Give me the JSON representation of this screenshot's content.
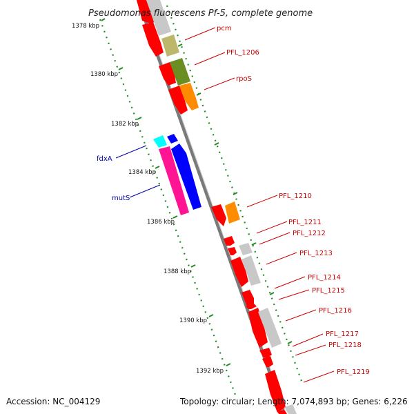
{
  "title": "Pseudomonas fluorescens Pf-5, complete genome",
  "footer": {
    "accession": "Accession: NC_004129",
    "stats": "Topology: circular; Length: 7,074,893 bp; Genes: 6,226"
  },
  "ticks": [
    "1378 kbp",
    "1380 kbp",
    "1382 kbp",
    "1384 kbp",
    "1386 kbp",
    "1388 kbp",
    "1390 kbp",
    "1392 kbp"
  ],
  "labels_right": [
    "pcm",
    "PFL_1206",
    "rpoS",
    "PFL_1210",
    "PFL_1211",
    "PFL_1212",
    "PFL_1213",
    "PFL_1214",
    "PFL_1215",
    "PFL_1216",
    "PFL_1217",
    "PFL_1218",
    "PFL_1219"
  ],
  "labels_left": [
    "fdxA",
    "mutS"
  ],
  "colors": {
    "backbone": "#8a8a8a",
    "cds": "#ff0000",
    "gene_grey": "#c8c8c8",
    "khaki": "#bdb76b",
    "olive": "#6b8e23",
    "orange": "#ff8c00",
    "cyan": "#00ffff",
    "blue": "#0000ff",
    "pink": "#ff1493",
    "tick_green": "#228b22",
    "label_red": "#cc0000",
    "label_blue": "#0000aa"
  }
}
